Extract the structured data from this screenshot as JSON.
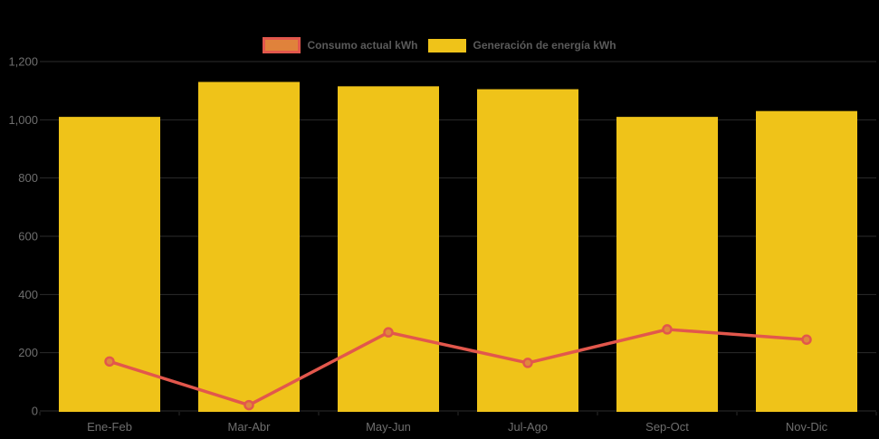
{
  "chart_data": {
    "type": "bar",
    "subtype": "bar-line-combo",
    "title": "",
    "categories": [
      "Ene-Feb",
      "Mar-Abr",
      "May-Jun",
      "Jul-Ago",
      "Sep-Oct",
      "Nov-Dic"
    ],
    "series": [
      {
        "name": "Generación de energía kWh",
        "type": "bar",
        "color": "#EFC319",
        "values": [
          1010,
          1130,
          1115,
          1105,
          1010,
          1030
        ]
      },
      {
        "name": "Consumo actual kWh",
        "type": "line",
        "color": "#E2574C",
        "marker_fill": "#E0883B",
        "values": [
          170,
          20,
          270,
          165,
          280,
          245
        ]
      }
    ],
    "xlabel": "",
    "ylabel": "",
    "ylim": [
      0,
      1200
    ],
    "yticks": [
      0,
      200,
      400,
      600,
      800,
      1000,
      1200
    ],
    "ytick_labels": [
      "0",
      "200",
      "400",
      "600",
      "800",
      "1,000",
      "1,200"
    ],
    "legend_position": "top-center",
    "grid": true,
    "colors": {
      "background": "#000000",
      "axis_text": "#6E6E6E",
      "legend_text": "#5A5A5A",
      "gridline": "#2B2B2B",
      "legend_consumo_fill": "#E0823B",
      "legend_consumo_border": "#E2574C"
    }
  }
}
